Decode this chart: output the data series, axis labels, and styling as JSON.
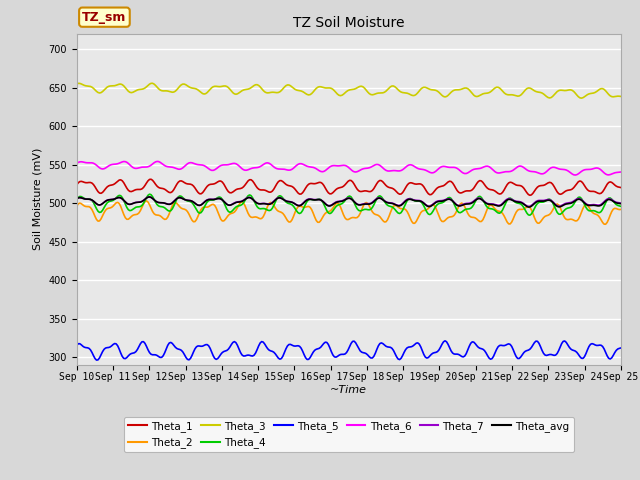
{
  "title": "TZ Soil Moisture",
  "xlabel": "~Time",
  "ylabel": "Soil Moisture (mV)",
  "ylim": [
    290,
    720
  ],
  "yticks": [
    300,
    350,
    400,
    450,
    500,
    550,
    600,
    650,
    700
  ],
  "n_days": 15,
  "n_points": 360,
  "series_order": [
    "Theta_1",
    "Theta_2",
    "Theta_3",
    "Theta_4",
    "Theta_5",
    "Theta_6",
    "Theta_7",
    "Theta_avg"
  ],
  "series": {
    "Theta_1": {
      "color": "#cc0000",
      "base": 522,
      "trend": -3.0,
      "amp": 7,
      "freq": 1.1,
      "phase": 0.0
    },
    "Theta_2": {
      "color": "#ff9900",
      "base": 490,
      "trend": -5.0,
      "amp": 10,
      "freq": 1.15,
      "phase": 0.3
    },
    "Theta_3": {
      "color": "#cccc00",
      "base": 650,
      "trend": -8.0,
      "amp": 5,
      "freq": 1.05,
      "phase": 0.6
    },
    "Theta_4": {
      "color": "#00cc00",
      "base": 500,
      "trend": -4.5,
      "amp": 9,
      "freq": 1.1,
      "phase": 0.2
    },
    "Theta_5": {
      "color": "#0000ff",
      "base": 308,
      "trend": 1.5,
      "amp": 9,
      "freq": 1.2,
      "phase": 0.5
    },
    "Theta_6": {
      "color": "#ff00ff",
      "base": 550,
      "trend": -9.0,
      "amp": 4,
      "freq": 1.0,
      "phase": 0.1
    },
    "Theta_7": {
      "color": "#9900cc",
      "base": 503,
      "trend": -2.5,
      "amp": 4,
      "freq": 1.1,
      "phase": 0.4
    },
    "Theta_avg": {
      "color": "#000000",
      "base": 503,
      "trend": -3.5,
      "amp": 4,
      "freq": 1.1,
      "phase": 0.35
    }
  },
  "legend_box_text": "TZ_sm",
  "legend_box_facecolor": "#ffffcc",
  "legend_box_edgecolor": "#cc8800",
  "fig_facecolor": "#d8d8d8",
  "ax_facecolor": "#e8e8e8",
  "grid_color": "#ffffff",
  "xtick_labels": [
    "Sep 10",
    "Sep 11",
    "Sep 12",
    "Sep 13",
    "Sep 14",
    "Sep 15",
    "Sep 16",
    "Sep 17",
    "Sep 18",
    "Sep 19",
    "Sep 20",
    "Sep 21",
    "Sep 22",
    "Sep 23",
    "Sep 24",
    "Sep 25"
  ]
}
